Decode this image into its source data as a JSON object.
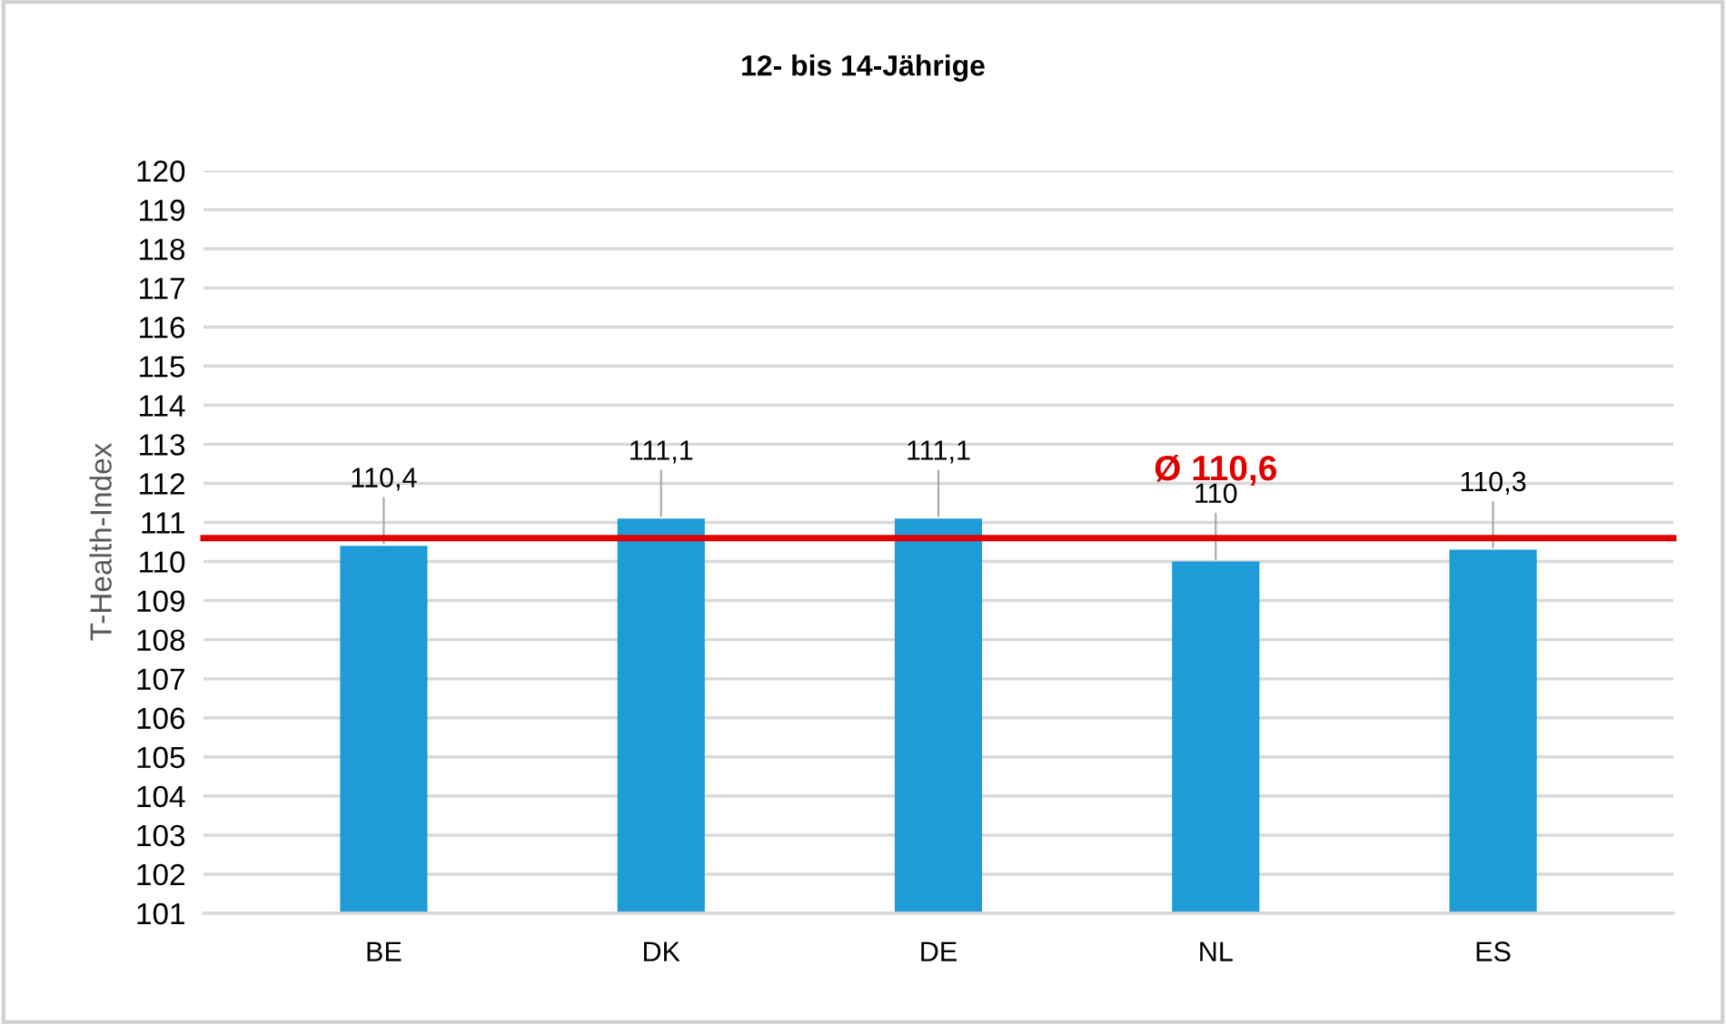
{
  "chart_data": {
    "type": "bar",
    "title": "12- bis 14-Jährige",
    "ylabel": "T-Health-Index",
    "categories": [
      "BE",
      "DK",
      "DE",
      "NL",
      "ES"
    ],
    "values": [
      110.4,
      111.1,
      111.1,
      110,
      110.3
    ],
    "value_labels": [
      "110,4",
      "111,1",
      "111,1",
      "110",
      "110,3"
    ],
    "color": "#1f9bd7",
    "ylim": [
      101,
      120
    ],
    "yticks": [
      101,
      102,
      103,
      104,
      105,
      106,
      107,
      108,
      109,
      110,
      111,
      112,
      113,
      114,
      115,
      116,
      117,
      118,
      119,
      120
    ],
    "ref_lines": [
      {
        "axis": "y",
        "value": 110.6,
        "label": "Ø 110,6",
        "color": "#e00000"
      }
    ],
    "grid": "y",
    "legend": false
  }
}
